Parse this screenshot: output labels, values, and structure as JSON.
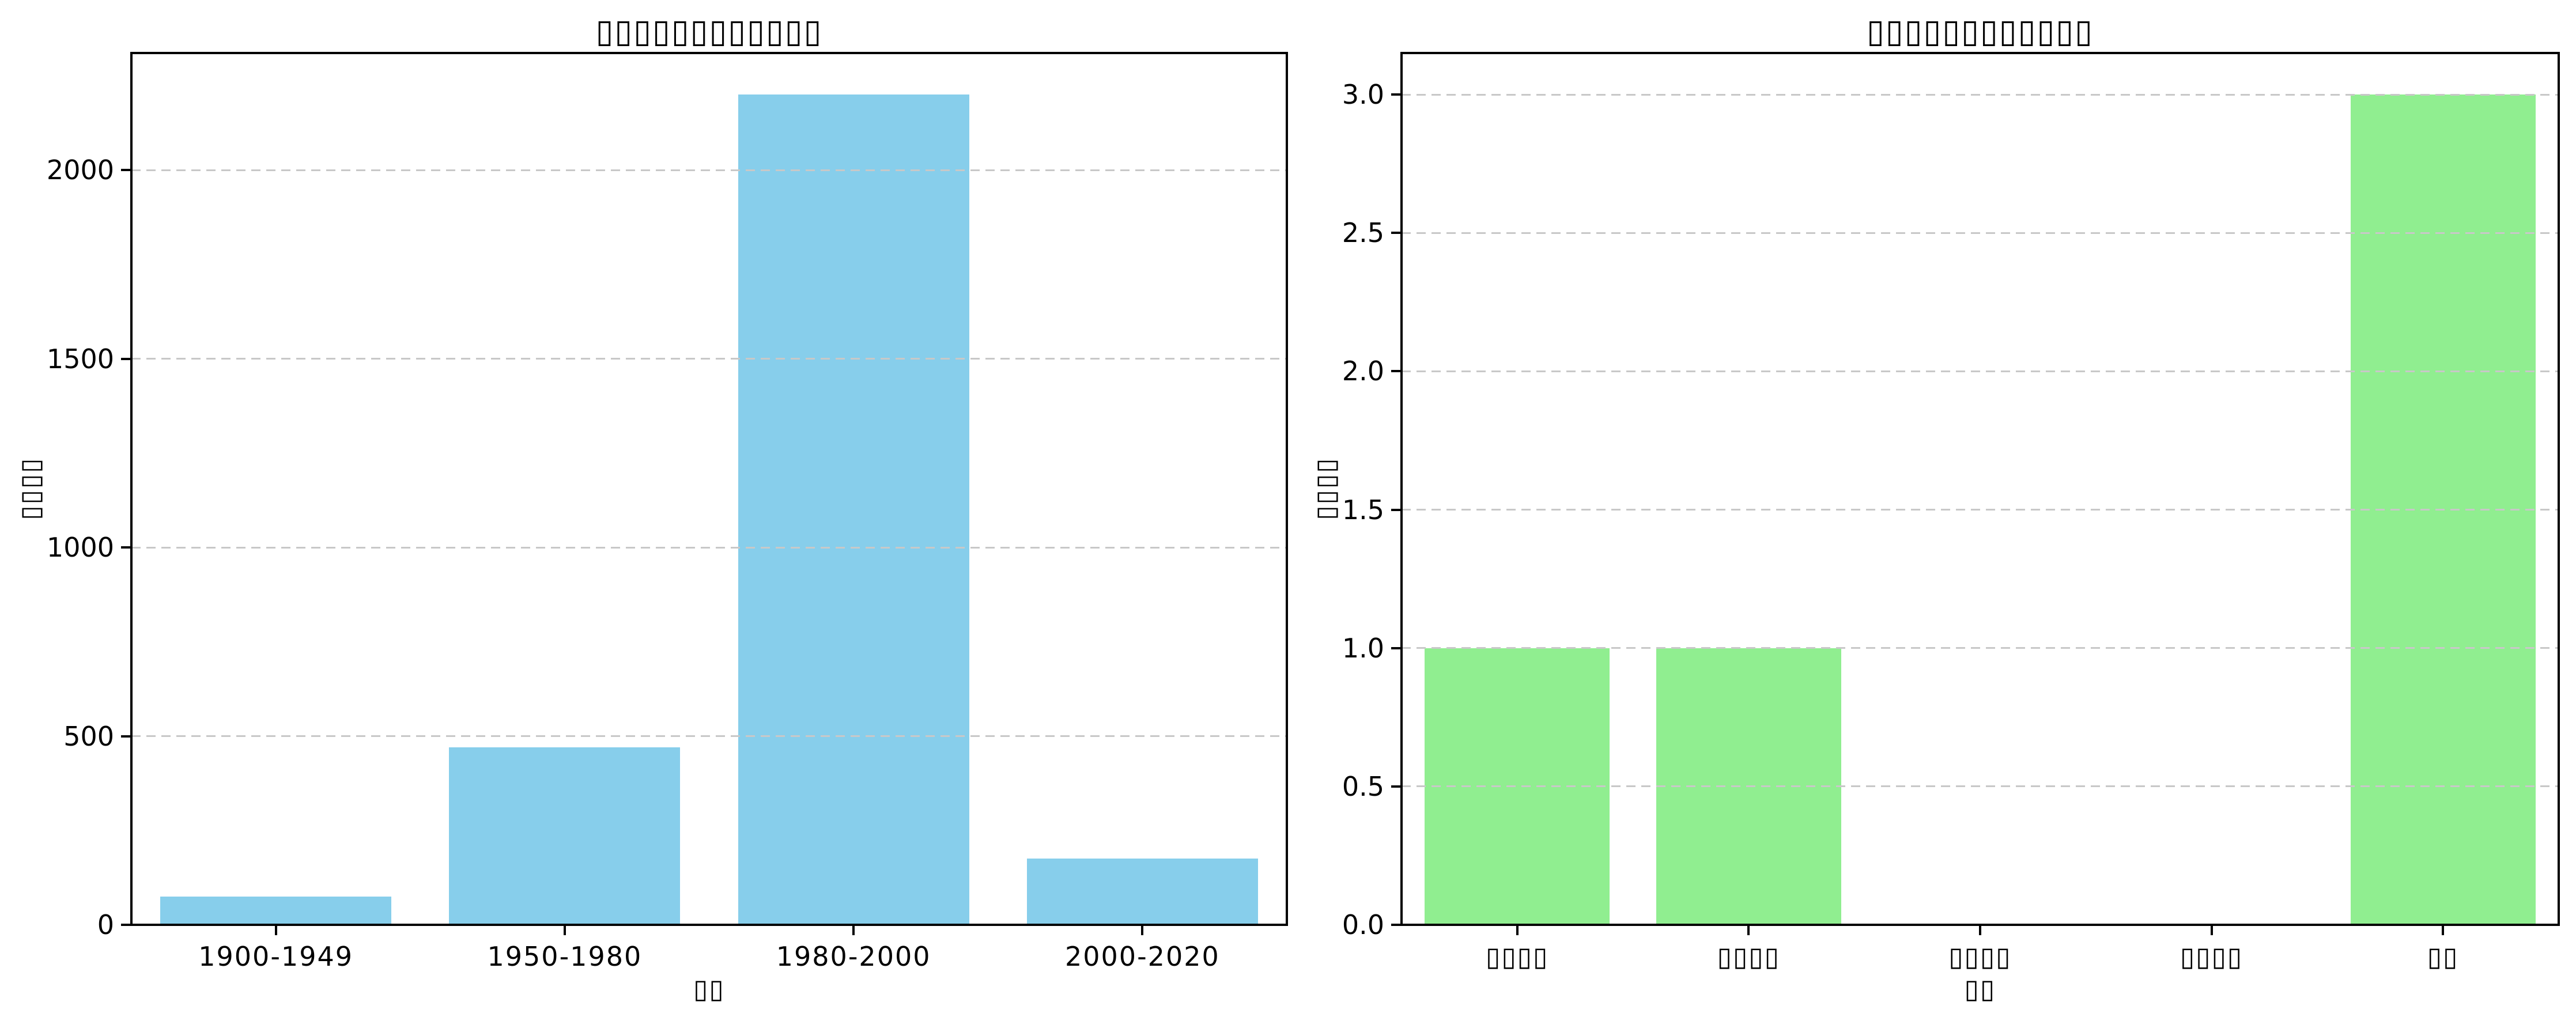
{
  "figure": {
    "background": "#ffffff",
    "text_color": "#000000",
    "gridline_color": "#c8c8c8",
    "missing_glyph_note_char": "▯"
  },
  "chart_data": [
    {
      "type": "bar",
      "title": "▯▯▯▯▯▯▯▯▯▯▯▯",
      "xlabel": "▯▯",
      "ylabel": "▯▯▯▯",
      "categories": [
        "1900-1949",
        "1950-1980",
        "1980-2000",
        "2000-2020"
      ],
      "values": [
        75,
        470,
        2200,
        175
      ],
      "bar_color": "#87CEEB",
      "ylim": [
        0,
        2310
      ],
      "yticks": [
        0,
        500,
        1000,
        1500,
        2000
      ],
      "ytick_labels": [
        "0",
        "500",
        "1000",
        "1500",
        "2000"
      ],
      "grid": {
        "axis": "y",
        "style": "dashed",
        "above_bars": true
      },
      "legend": "none"
    },
    {
      "type": "bar",
      "title": "▯▯▯▯▯▯▯▯▯▯▯▯",
      "xlabel": "▯▯",
      "ylabel": "▯▯▯▯",
      "categories": [
        "▯▯▯▯",
        "▯▯▯▯",
        "▯▯▯▯",
        "▯▯▯▯",
        "▯▯"
      ],
      "values": [
        1,
        1,
        0,
        0,
        3
      ],
      "bar_color": "#90EE90",
      "ylim": [
        0,
        3.15
      ],
      "yticks": [
        0,
        0.5,
        1,
        1.5,
        2,
        2.5,
        3
      ],
      "ytick_labels": [
        "0.0",
        "0.5",
        "1.0",
        "1.5",
        "2.0",
        "2.5",
        "3.0"
      ],
      "grid": {
        "axis": "y",
        "style": "dashed",
        "above_bars": true
      },
      "legend": "none"
    }
  ]
}
